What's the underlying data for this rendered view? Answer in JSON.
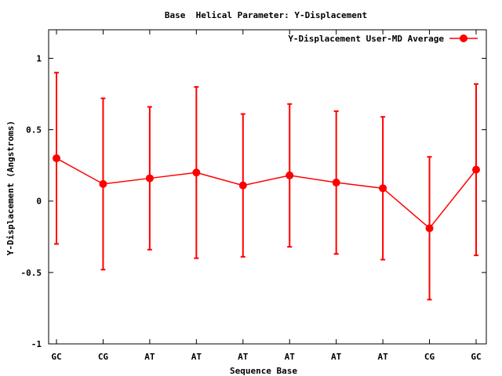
{
  "chart_data": {
    "type": "line",
    "title": "Base  Helical Parameter: Y-Displacement",
    "xlabel": "Sequence Base",
    "ylabel": "Y-Displacement (Angstroms)",
    "ylim": [
      -1,
      1.2
    ],
    "yticks": [
      -1,
      -0.5,
      0,
      0.5,
      1
    ],
    "ytick_labels": [
      "-1",
      "-0.5",
      "0",
      "0.5",
      "1"
    ],
    "categories": [
      "GC",
      "CG",
      "AT",
      "AT",
      "AT",
      "AT",
      "AT",
      "AT",
      "CG",
      "GC"
    ],
    "grid": false,
    "legend_position": "top-right",
    "series": [
      {
        "name": "Y-Displacement User-MD Average",
        "color": "#ff0000",
        "values": [
          0.3,
          0.12,
          0.16,
          0.2,
          0.11,
          0.18,
          0.13,
          0.09,
          -0.19,
          0.22
        ],
        "error_low": [
          -0.3,
          -0.48,
          -0.34,
          -0.4,
          -0.39,
          -0.32,
          -0.37,
          -0.41,
          -0.69,
          -0.38
        ],
        "error_high": [
          0.9,
          0.72,
          0.66,
          0.8,
          0.61,
          0.68,
          0.63,
          0.59,
          0.31,
          0.82
        ]
      }
    ]
  }
}
